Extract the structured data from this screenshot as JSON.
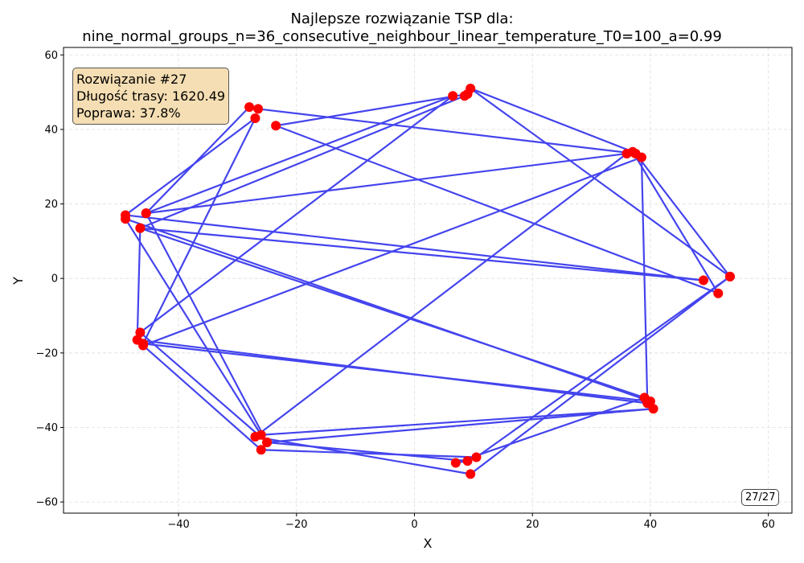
{
  "title_line1": "Najlepsze rozwiązanie TSP dla:",
  "title_line2": "nine_normal_groups_n=36_consecutive_neighbour_linear_temperature_T0=100_a=0.99",
  "info": {
    "line1": "Rozwiązanie #27",
    "line2": "Długość trasy: 1620.49",
    "line3": "Poprawa: 37.8%"
  },
  "counter": "27/27",
  "colors": {
    "route": "#4444ee",
    "city": "#ff0000",
    "grid": "#dddddd",
    "info_bg": "#f5deb3"
  },
  "chart_data": {
    "type": "line",
    "xlabel": "X",
    "ylabel": "Y",
    "xlim": [
      -59.5,
      64
    ],
    "ylim": [
      -63,
      62
    ],
    "xticks": [
      -40,
      -20,
      0,
      20,
      40,
      60
    ],
    "yticks": [
      -60,
      -40,
      -20,
      0,
      20,
      40,
      60
    ],
    "xtick_labels": [
      "−40",
      "−20",
      "0",
      "20",
      "40",
      "60"
    ],
    "ytick_labels": [
      "−60",
      "−40",
      "−20",
      "0",
      "20",
      "40",
      "60"
    ],
    "grid": true,
    "series": [
      {
        "points": [
          [
            -28,
            46
          ],
          [
            -26.5,
            45.5
          ],
          [
            37.5,
            33.5
          ],
          [
            53.5,
            0.5
          ],
          [
            10.5,
            -48
          ],
          [
            -26,
            -46
          ],
          [
            -46,
            -18
          ],
          [
            38.5,
            32.5
          ],
          [
            39.5,
            -33.5
          ],
          [
            -47,
            -16.5
          ],
          [
            -46.5,
            13.5
          ],
          [
            49,
            -0.5
          ],
          [
            -49,
            17
          ],
          [
            -27,
            43
          ],
          [
            -46,
            -17.5
          ],
          [
            40,
            -33
          ],
          [
            -49,
            16
          ],
          [
            -26,
            -42
          ],
          [
            40.5,
            -35
          ],
          [
            -25,
            -44
          ],
          [
            -46.5,
            -14.5
          ],
          [
            6.5,
            49
          ],
          [
            -45.5,
            17.5
          ],
          [
            36,
            33.5
          ],
          [
            -27,
            -42.5
          ],
          [
            9.5,
            -52.5
          ],
          [
            53.5,
            0.5
          ],
          [
            9.5,
            51
          ],
          [
            37,
            34
          ],
          [
            51.5,
            -4
          ],
          [
            -23.5,
            41
          ],
          [
            9,
            49.5
          ],
          [
            8.5,
            49
          ],
          [
            -46.5,
            13.5
          ],
          [
            39,
            -32
          ],
          [
            7,
            -49.5
          ],
          [
            9,
            -49
          ],
          [
            -25,
            -44
          ],
          [
            -45.5,
            17.5
          ],
          [
            -28,
            46
          ]
        ]
      }
    ]
  }
}
